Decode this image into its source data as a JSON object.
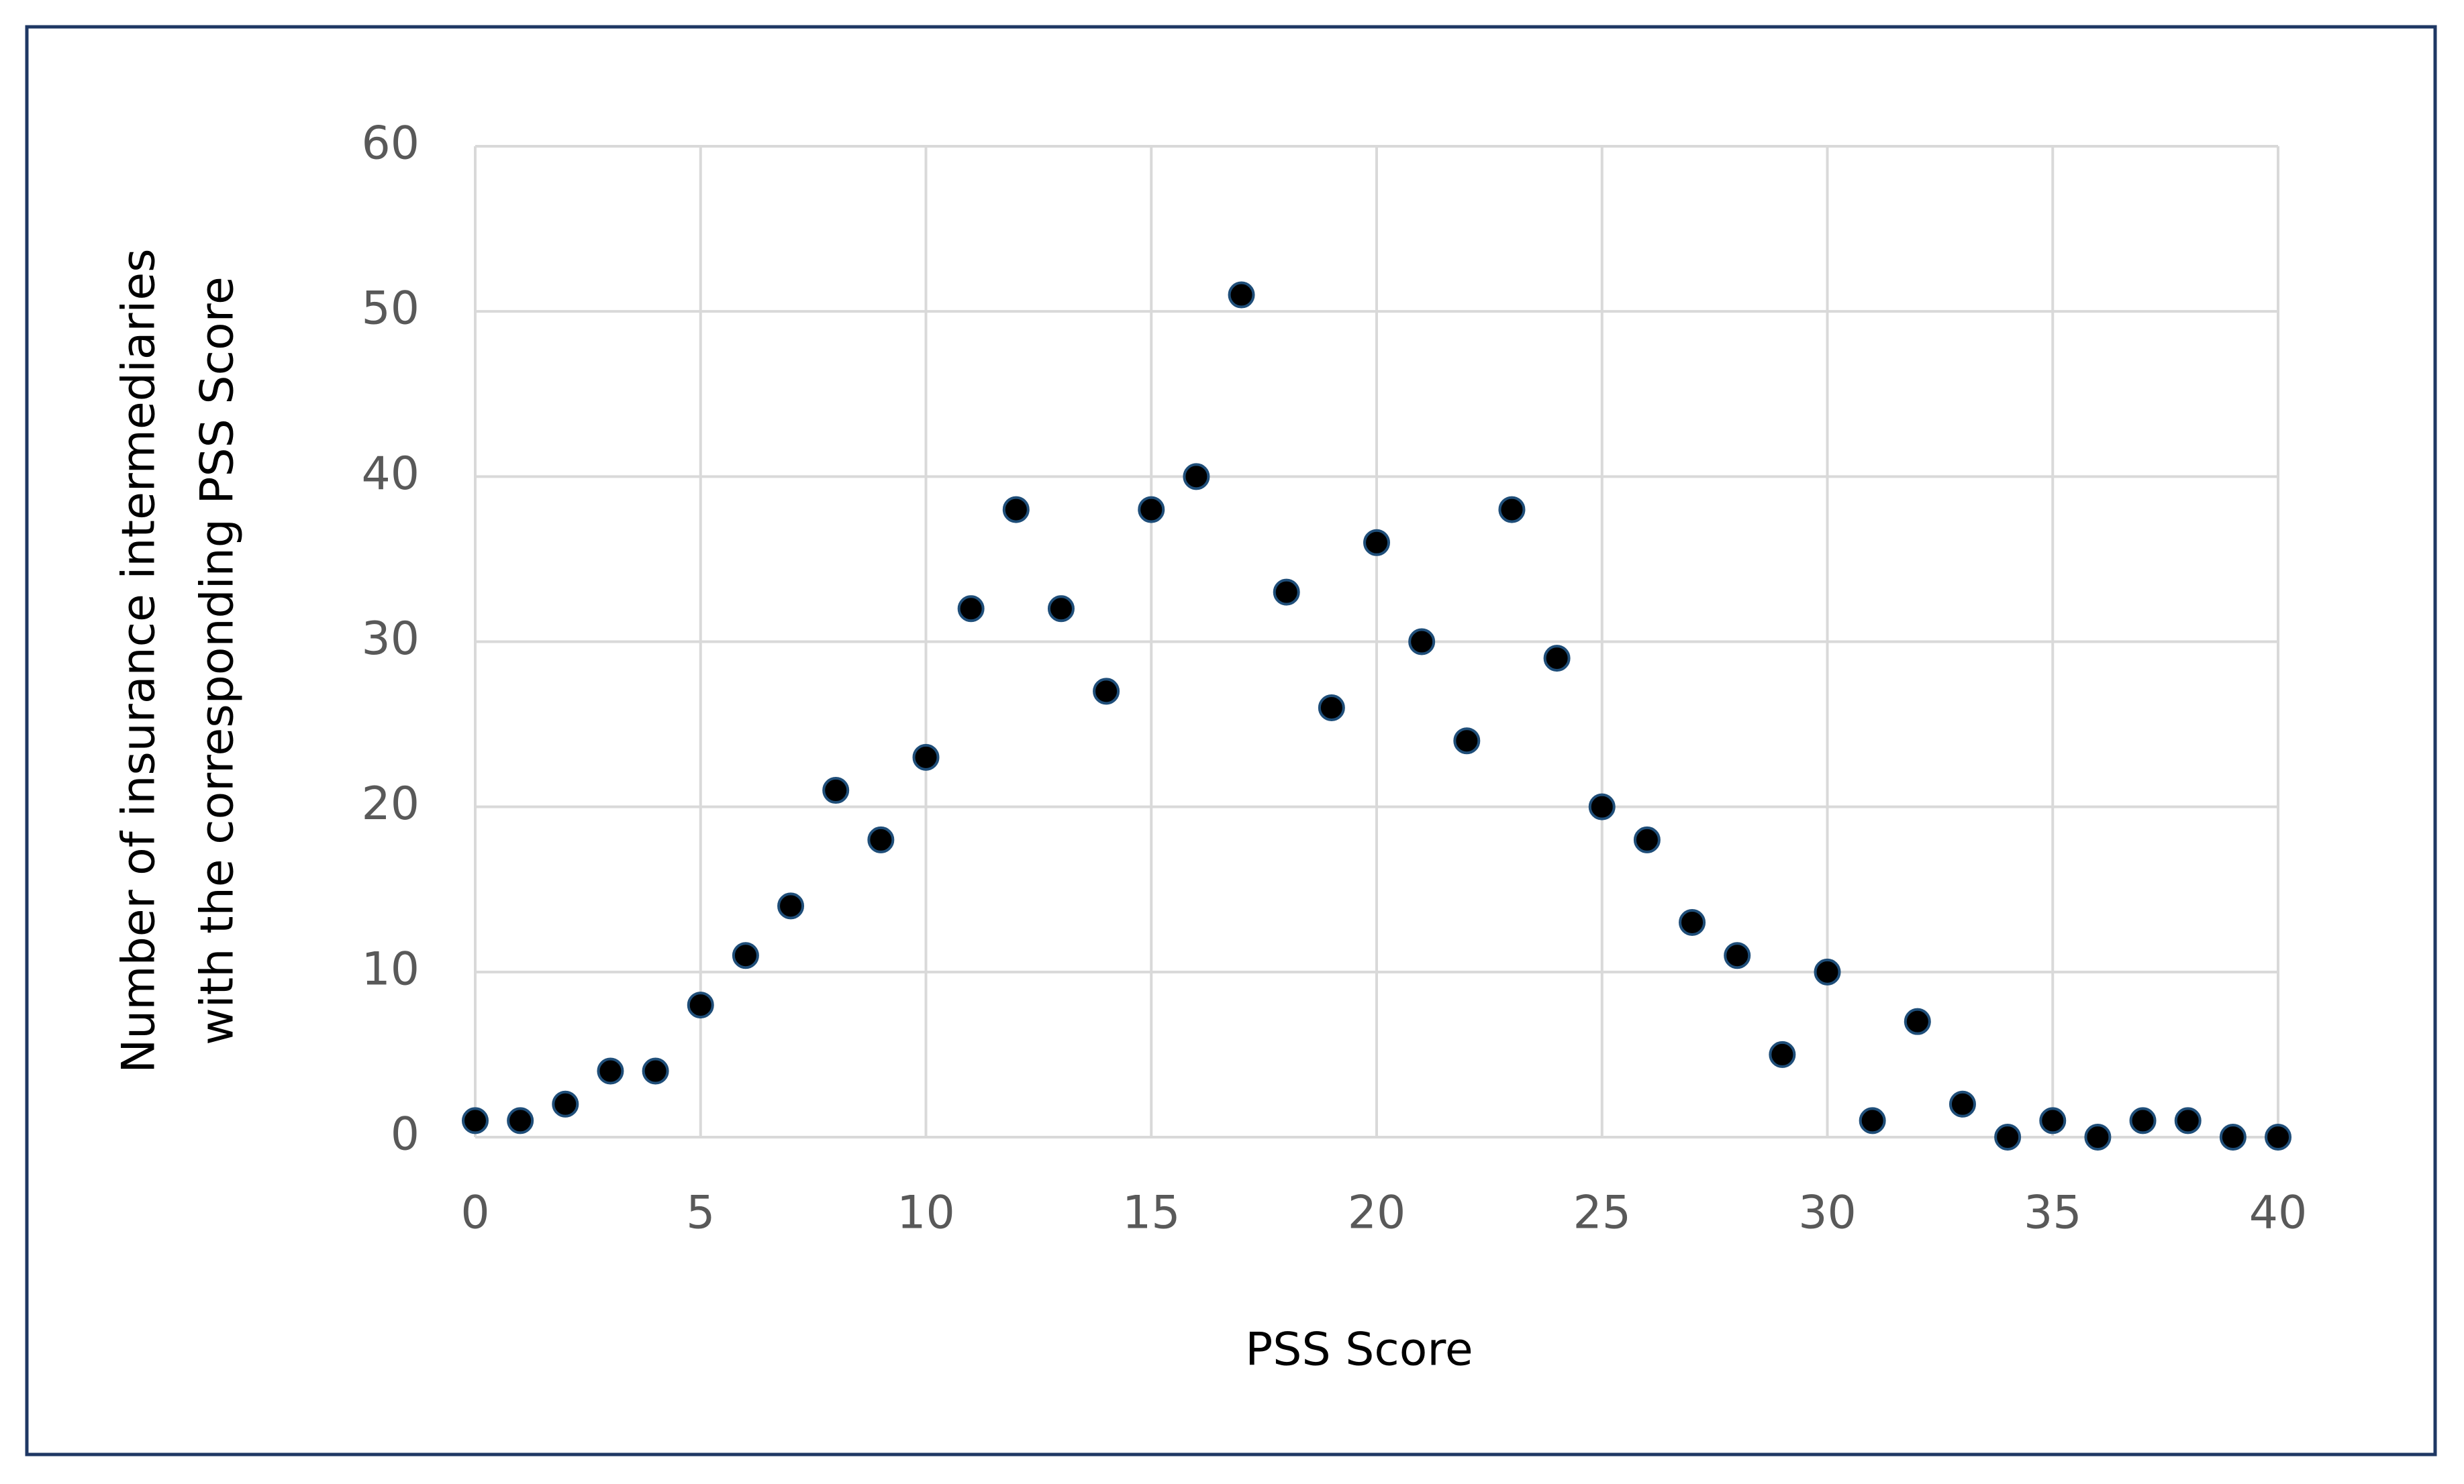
{
  "chart_data": {
    "type": "scatter",
    "xlabel": "PSS Score",
    "ylabel": [
      "Number of insurance intermediaries",
      "with the corresponding PSS Score"
    ],
    "x": [
      0,
      1,
      2,
      3,
      4,
      5,
      6,
      7,
      8,
      9,
      10,
      11,
      12,
      13,
      14,
      15,
      16,
      17,
      18,
      19,
      20,
      21,
      22,
      23,
      24,
      25,
      26,
      27,
      28,
      29,
      30,
      31,
      32,
      33,
      34,
      35,
      36,
      37,
      38,
      39,
      40
    ],
    "series": [
      {
        "color": "#000000",
        "values": [
          1,
          1,
          2,
          4,
          4,
          8,
          11,
          14,
          21,
          18,
          23,
          32,
          38,
          32,
          27,
          38,
          40,
          51,
          33,
          26,
          36,
          30,
          24,
          38,
          29,
          20,
          18,
          13,
          11,
          5,
          10,
          1,
          7,
          2,
          0,
          1,
          0,
          1,
          1,
          0,
          0
        ]
      }
    ],
    "xlim": [
      0,
      40
    ],
    "xticks": [
      0,
      5,
      10,
      15,
      20,
      25,
      30,
      35,
      40
    ],
    "ylim": [
      0,
      60
    ],
    "yticks": [
      0,
      10,
      20,
      30,
      40,
      50,
      60
    ],
    "grid": true
  }
}
